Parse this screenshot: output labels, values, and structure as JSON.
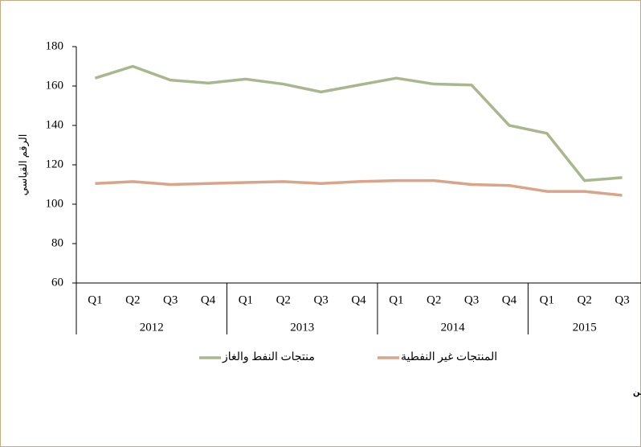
{
  "chart_data": {
    "type": "line",
    "y_axis_label": "الرقم القياسي",
    "category_groups": [
      {
        "label": "2012",
        "categories": [
          "Q1",
          "Q2",
          "Q3",
          "Q4"
        ]
      },
      {
        "label": "2013",
        "categories": [
          "Q1",
          "Q2",
          "Q3",
          "Q4"
        ]
      },
      {
        "label": "2014",
        "categories": [
          "Q1",
          "Q2",
          "Q3",
          "Q4"
        ]
      },
      {
        "label": "2015",
        "categories": [
          "Q1",
          "Q2",
          "Q3"
        ]
      }
    ],
    "series": [
      {
        "name": "منتجات النفط والغاز",
        "color": "#a9b78e",
        "values": [
          164,
          170,
          163,
          161.5,
          163.5,
          161,
          157,
          160.5,
          164,
          161,
          160.5,
          140,
          136,
          112,
          113.5
        ]
      },
      {
        "name": "المنتجات غير النفطية",
        "color": "#d9a48a",
        "values": [
          110.5,
          111.5,
          110,
          110.5,
          111,
          111.5,
          110.5,
          111.5,
          112,
          112,
          110,
          109.5,
          106.5,
          106.5,
          104.5
        ]
      }
    ],
    "ylim": [
      60,
      180
    ],
    "yticks": [
      60,
      80,
      100,
      120,
      140,
      160,
      180
    ],
    "grid": false,
    "source": "المصدر: المركز الوطني للإحصاء والمعلومات - المسح الربع سنوي للأرقام القياسية لأسعار المنتجين"
  }
}
